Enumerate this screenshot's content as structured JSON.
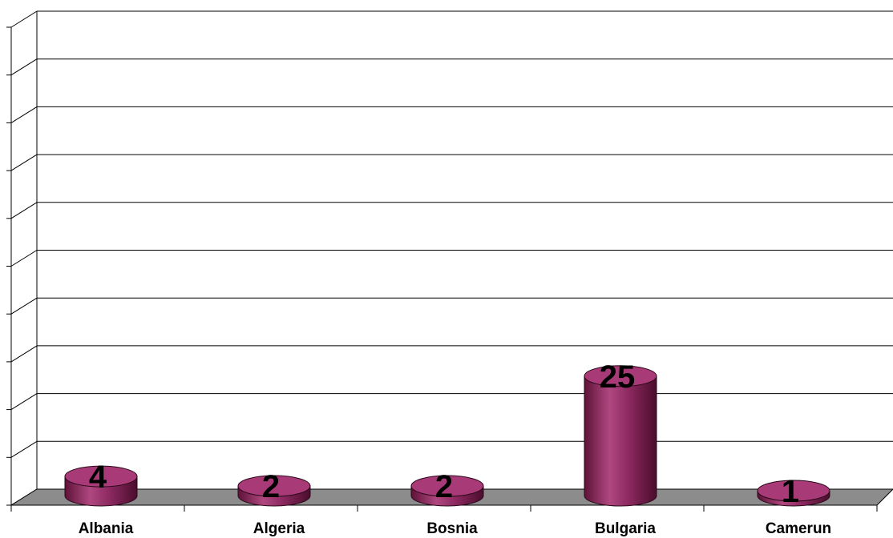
{
  "chart_data": {
    "type": "bar",
    "style": "3d-cylinder",
    "categories": [
      "Albania",
      "Algeria",
      "Bosnia",
      "Bulgaria",
      "Camerun"
    ],
    "values": [
      4,
      2,
      2,
      25,
      1
    ],
    "data_labels": [
      "4",
      "2",
      "2",
      "25",
      "1"
    ],
    "title": "",
    "xlabel": "",
    "ylabel": "",
    "ylim": [
      0,
      100
    ],
    "y_tick_step": 10,
    "grid": true,
    "legend": "none",
    "colors": {
      "bar": "#8f2a63",
      "bar_top": "#a83a78",
      "floor": "#8c8c8c",
      "grid": "#000000"
    }
  }
}
